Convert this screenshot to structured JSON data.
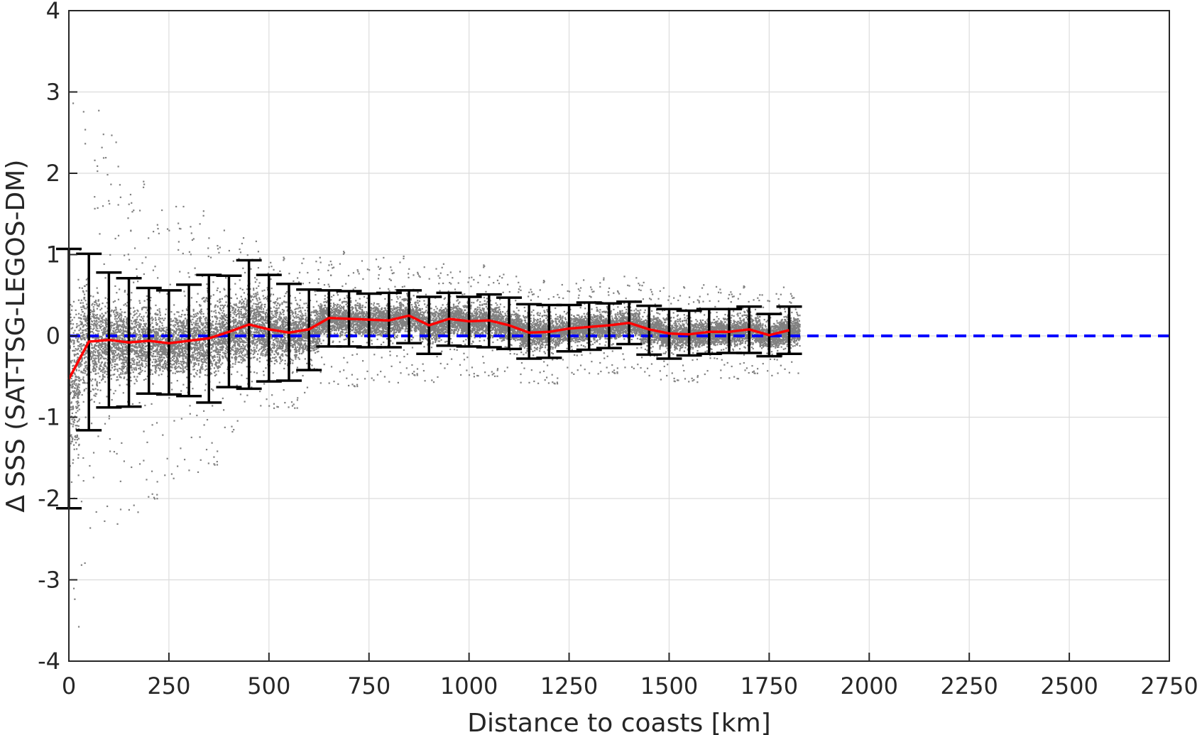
{
  "chart_data": {
    "type": "scatter",
    "xlabel": "Distance to coasts [km]",
    "ylabel": "∆ SSS (SAT-TSG-LEGOS-DM)",
    "xlim": [
      0,
      2750
    ],
    "ylim": [
      -4,
      4
    ],
    "grid": true,
    "x_ticks": [
      0,
      250,
      500,
      750,
      1000,
      1250,
      1500,
      1750,
      2000,
      2250,
      2500,
      2750
    ],
    "y_ticks": [
      -4,
      -3,
      -2,
      -1,
      0,
      1,
      2,
      3,
      4
    ],
    "x_tick_labels": [
      "0",
      "250",
      "500",
      "750",
      "1000",
      "1250",
      "1500",
      "1750",
      "2000",
      "2250",
      "2500",
      "2750"
    ],
    "y_tick_labels": [
      "-4",
      "-3",
      "-2",
      "-1",
      "0",
      "1",
      "2",
      "3",
      "4"
    ],
    "reference_line": {
      "y": 0,
      "color": "#0000ff",
      "style": "dashed"
    },
    "scatter_color": "#808080",
    "mean_line_color": "#ff0000",
    "errorbar_color": "#000000",
    "scatter_spread_by_bin": [
      3.5,
      3.0,
      2.6,
      2.2,
      2.0,
      1.8,
      1.7,
      1.6,
      1.3,
      1.1,
      1.0,
      0.95,
      0.9,
      0.85,
      0.85,
      0.8,
      0.8,
      0.75,
      0.75,
      0.7,
      0.7,
      0.7,
      0.65,
      0.65,
      0.65,
      0.6,
      0.6,
      0.6,
      0.6,
      0.6,
      0.6,
      0.6,
      0.6,
      0.6,
      0.55,
      0.55,
      0.55
    ],
    "series": [
      {
        "type": "errorbar",
        "x": [
          0,
          50,
          100,
          150,
          200,
          250,
          300,
          350,
          400,
          450,
          500,
          550,
          600,
          650,
          700,
          750,
          800,
          850,
          900,
          950,
          1000,
          1050,
          1100,
          1150,
          1200,
          1250,
          1300,
          1350,
          1400,
          1450,
          1500,
          1550,
          1600,
          1650,
          1700,
          1750,
          1800
        ],
        "mean": [
          -0.53,
          -0.07,
          -0.05,
          -0.08,
          -0.06,
          -0.09,
          -0.06,
          -0.03,
          0.05,
          0.14,
          0.08,
          0.04,
          0.08,
          0.22,
          0.21,
          0.2,
          0.19,
          0.25,
          0.13,
          0.21,
          0.18,
          0.19,
          0.13,
          0.04,
          0.05,
          0.09,
          0.11,
          0.13,
          0.16,
          0.08,
          0.03,
          0.02,
          0.05,
          0.05,
          0.08,
          0.01,
          0.07
        ],
        "upper": [
          1.07,
          1.01,
          0.78,
          0.71,
          0.59,
          0.56,
          0.63,
          0.75,
          0.74,
          0.93,
          0.75,
          0.64,
          0.57,
          0.56,
          0.55,
          0.52,
          0.53,
          0.56,
          0.48,
          0.53,
          0.48,
          0.51,
          0.47,
          0.39,
          0.38,
          0.38,
          0.41,
          0.4,
          0.42,
          0.37,
          0.33,
          0.31,
          0.33,
          0.33,
          0.36,
          0.27,
          0.36
        ],
        "lower": [
          -2.12,
          -1.16,
          -0.88,
          -0.87,
          -0.71,
          -0.72,
          -0.74,
          -0.82,
          -0.63,
          -0.65,
          -0.56,
          -0.55,
          -0.42,
          -0.13,
          -0.13,
          -0.14,
          -0.14,
          -0.09,
          -0.22,
          -0.12,
          -0.13,
          -0.14,
          -0.16,
          -0.28,
          -0.27,
          -0.19,
          -0.17,
          -0.15,
          -0.1,
          -0.23,
          -0.28,
          -0.24,
          -0.22,
          -0.21,
          -0.21,
          -0.25,
          -0.22
        ]
      }
    ]
  }
}
